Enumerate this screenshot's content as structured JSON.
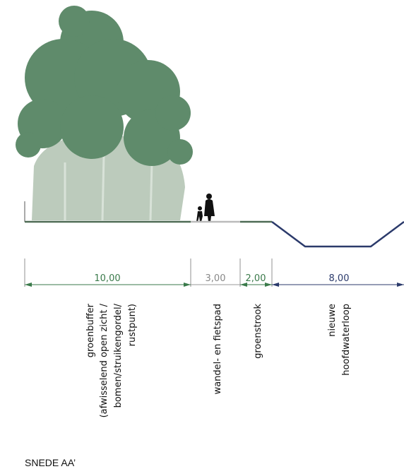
{
  "title": "SNEDE AA’",
  "sections": [
    {
      "width": "10,00",
      "label": [
        "groenbuffer",
        "(afwisselend open zicht /",
        "bomen/struikengordel/",
        "rustpunt)"
      ]
    },
    {
      "width": "3,00",
      "label": [
        "wandel- en fietspad"
      ]
    },
    {
      "width": "2,00",
      "label": [
        "groenstrook"
      ]
    },
    {
      "width": "8,00",
      "label": [
        "nieuwe",
        "hoofdwaterloop"
      ]
    }
  ]
}
